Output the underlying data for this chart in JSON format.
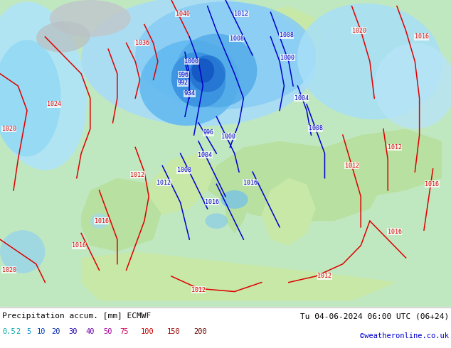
{
  "title_left": "Precipitation accum. [mm] ECMWF",
  "title_right": "Tu 04-06-2024 06:00 UTC (06+24)",
  "credit": "©weatheronline.co.uk",
  "legend_values": [
    "0.5",
    "2",
    "5",
    "10",
    "20",
    "30",
    "40",
    "50",
    "75",
    "100",
    "150",
    "200"
  ],
  "legend_colors": [
    "#00ffff",
    "#00ddff",
    "#00aaff",
    "#0066ff",
    "#003fff",
    "#1400ff",
    "#6600cc",
    "#cc00cc",
    "#ff0099",
    "#ff0000",
    "#cc0000",
    "#880000"
  ],
  "legend_text_colors": [
    "#00aaaa",
    "#00aaaa",
    "#0088cc",
    "#0044bb",
    "#0022aa",
    "#2200aa",
    "#6600aa",
    "#aa0099",
    "#cc0055",
    "#cc0000",
    "#990000",
    "#660000"
  ],
  "background_color": "#ffffff",
  "map_bg_ocean": "#c8f0c8",
  "map_bg_land": "#b8e8a0",
  "bottom_text_color": "#000000",
  "credit_color": "#0000cc",
  "isobar_red_color": "#dd0000",
  "isobar_blue_color": "#0000cc",
  "figsize": [
    6.34,
    4.9
  ],
  "dpi": 100
}
